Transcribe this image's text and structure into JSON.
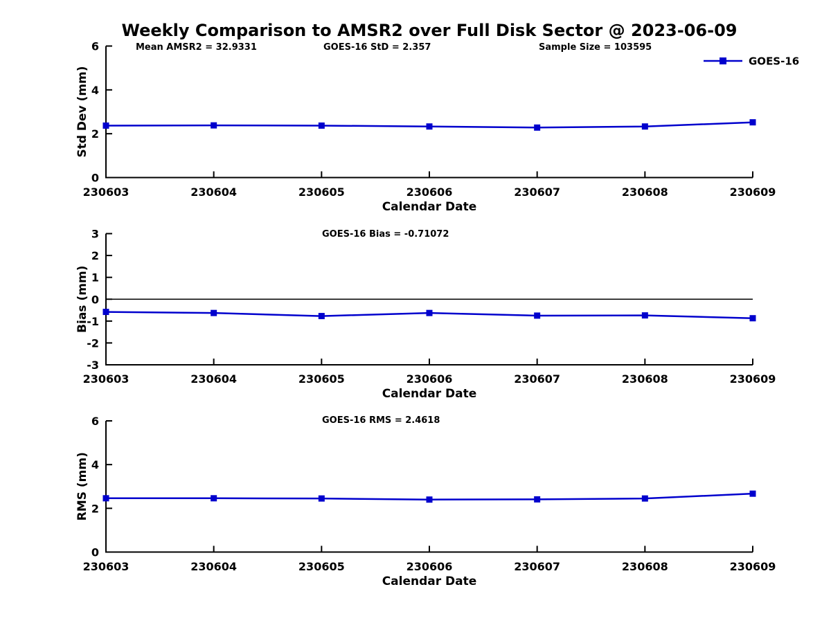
{
  "title": "Weekly Comparison to AMSR2 over Full Disk Sector @ 2023-06-09",
  "accent_color": "#0000cd",
  "chart_data": [
    {
      "type": "line",
      "name": "std-dev-vs-date",
      "annotations": [
        "Mean AMSR2 = 32.9331",
        "GOES-16 StD = 2.357",
        "Sample Size = 103595"
      ],
      "xlabel": "Calendar Date",
      "ylabel": "Std Dev (mm)",
      "categories": [
        "230603",
        "230604",
        "230605",
        "230606",
        "230607",
        "230608",
        "230609"
      ],
      "series": [
        {
          "name": "GOES-16",
          "color": "#0000cd",
          "marker": "square",
          "values": [
            2.37,
            2.38,
            2.37,
            2.33,
            2.28,
            2.33,
            2.52
          ]
        }
      ],
      "ylim": [
        0,
        6
      ],
      "yticks": [
        0,
        2,
        4,
        6
      ],
      "legend_position": "top-right",
      "grid": false,
      "zero_line": false
    },
    {
      "type": "line",
      "name": "bias-vs-date",
      "annotations": [
        "GOES-16 Bias  = -0.71072"
      ],
      "xlabel": "Calendar Date",
      "ylabel": "Bias (mm)",
      "categories": [
        "230603",
        "230604",
        "230605",
        "230606",
        "230607",
        "230608",
        "230609"
      ],
      "series": [
        {
          "name": "GOES-16",
          "color": "#0000cd",
          "marker": "square",
          "values": [
            -0.58,
            -0.63,
            -0.77,
            -0.63,
            -0.75,
            -0.74,
            -0.87
          ]
        }
      ],
      "ylim": [
        -3,
        3
      ],
      "yticks": [
        -3,
        -2,
        -1,
        0,
        1,
        2,
        3
      ],
      "legend_position": "none",
      "grid": false,
      "zero_line": true
    },
    {
      "type": "line",
      "name": "rms-vs-date",
      "annotations": [
        "GOES-16 RMS = 2.4618"
      ],
      "xlabel": "Calendar Date",
      "ylabel": "RMS (mm)",
      "categories": [
        "230603",
        "230604",
        "230605",
        "230606",
        "230607",
        "230608",
        "230609"
      ],
      "series": [
        {
          "name": "GOES-16",
          "color": "#0000cd",
          "marker": "square",
          "values": [
            2.46,
            2.46,
            2.45,
            2.4,
            2.41,
            2.45,
            2.67
          ]
        }
      ],
      "ylim": [
        0,
        6
      ],
      "yticks": [
        0,
        2,
        4,
        6
      ],
      "legend_position": "none",
      "grid": false,
      "zero_line": false
    }
  ]
}
